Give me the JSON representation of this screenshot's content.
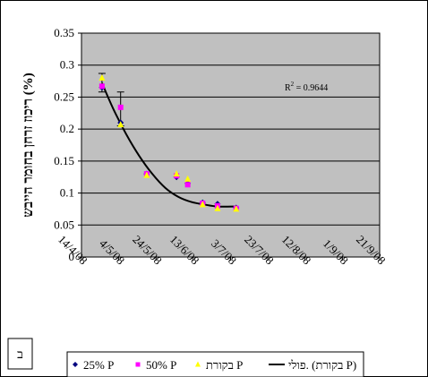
{
  "chart_data": {
    "type": "scatter",
    "title": "",
    "xlabel": "",
    "ylabel": "ריכוז זרחן בחומר הייבש (%)",
    "ylim": [
      0,
      0.35
    ],
    "yticks": [
      "0",
      "0.05",
      "0.1",
      "0.15",
      "0.2",
      "0.25",
      "0.3",
      "0.35"
    ],
    "xlim": [
      "2008-04-14",
      "2008-09-21"
    ],
    "xticks": [
      "14/4/08",
      "4/5/08",
      "24/5/08",
      "13/6/08",
      "3/7/08",
      "23/7/08",
      "12/8/08",
      "1/9/08",
      "21/9/08"
    ],
    "grid": true,
    "background": "#c0c0c0",
    "annotation": {
      "r2_prefix": "R",
      "r2_sup": "2",
      "r2_value": " = 0.9644"
    },
    "series": [
      {
        "name": "25% P",
        "marker": "diamond",
        "color": "#000080",
        "points": [
          {
            "x": "2008-04-25",
            "y": 0.265
          },
          {
            "x": "2008-05-05",
            "y": 0.21
          },
          {
            "x": "2008-05-19",
            "y": 0.13
          },
          {
            "x": "2008-06-04",
            "y": 0.125
          },
          {
            "x": "2008-06-10",
            "y": 0.115
          },
          {
            "x": "2008-06-18",
            "y": 0.085
          },
          {
            "x": "2008-06-26",
            "y": 0.083
          },
          {
            "x": "2008-07-06",
            "y": 0.077
          }
        ]
      },
      {
        "name": "50% P",
        "marker": "square",
        "color": "#ff00ff",
        "points": [
          {
            "x": "2008-04-25",
            "y": 0.267
          },
          {
            "x": "2008-05-05",
            "y": 0.234
          },
          {
            "x": "2008-05-19",
            "y": 0.13
          },
          {
            "x": "2008-06-04",
            "y": 0.127
          },
          {
            "x": "2008-06-10",
            "y": 0.113
          },
          {
            "x": "2008-06-18",
            "y": 0.084
          },
          {
            "x": "2008-06-26",
            "y": 0.08
          },
          {
            "x": "2008-07-06",
            "y": 0.076
          }
        ],
        "error_bars": [
          {
            "x": "2008-04-25",
            "low": 0.258,
            "high": 0.287
          },
          {
            "x": "2008-05-05",
            "low": 0.205,
            "high": 0.258
          }
        ]
      },
      {
        "name": "בקורת P",
        "marker": "triangle",
        "color": "#ffff00",
        "points": [
          {
            "x": "2008-04-25",
            "y": 0.28
          },
          {
            "x": "2008-05-05",
            "y": 0.207
          },
          {
            "x": "2008-05-19",
            "y": 0.128
          },
          {
            "x": "2008-06-04",
            "y": 0.13
          },
          {
            "x": "2008-06-10",
            "y": 0.122
          },
          {
            "x": "2008-06-18",
            "y": 0.082
          },
          {
            "x": "2008-06-26",
            "y": 0.076
          },
          {
            "x": "2008-07-06",
            "y": 0.075
          }
        ]
      }
    ],
    "trendline": {
      "name": "פולי. (בקורת P)",
      "type": "polynomial",
      "color": "#000000",
      "points": [
        {
          "x": "2008-04-25",
          "y": 0.272
        },
        {
          "x": "2008-05-01",
          "y": 0.232
        },
        {
          "x": "2008-05-08",
          "y": 0.192
        },
        {
          "x": "2008-05-15",
          "y": 0.158
        },
        {
          "x": "2008-05-22",
          "y": 0.13
        },
        {
          "x": "2008-05-29",
          "y": 0.108
        },
        {
          "x": "2008-06-05",
          "y": 0.094
        },
        {
          "x": "2008-06-12",
          "y": 0.086
        },
        {
          "x": "2008-06-19",
          "y": 0.082
        },
        {
          "x": "2008-06-26",
          "y": 0.079
        },
        {
          "x": "2008-07-06",
          "y": 0.079
        }
      ]
    },
    "legend": {
      "placement": "bottom",
      "items": [
        "25% P",
        "50% P",
        "בקורת P",
        "פולי. (בקורת P)"
      ]
    },
    "panel_label": "ב"
  }
}
